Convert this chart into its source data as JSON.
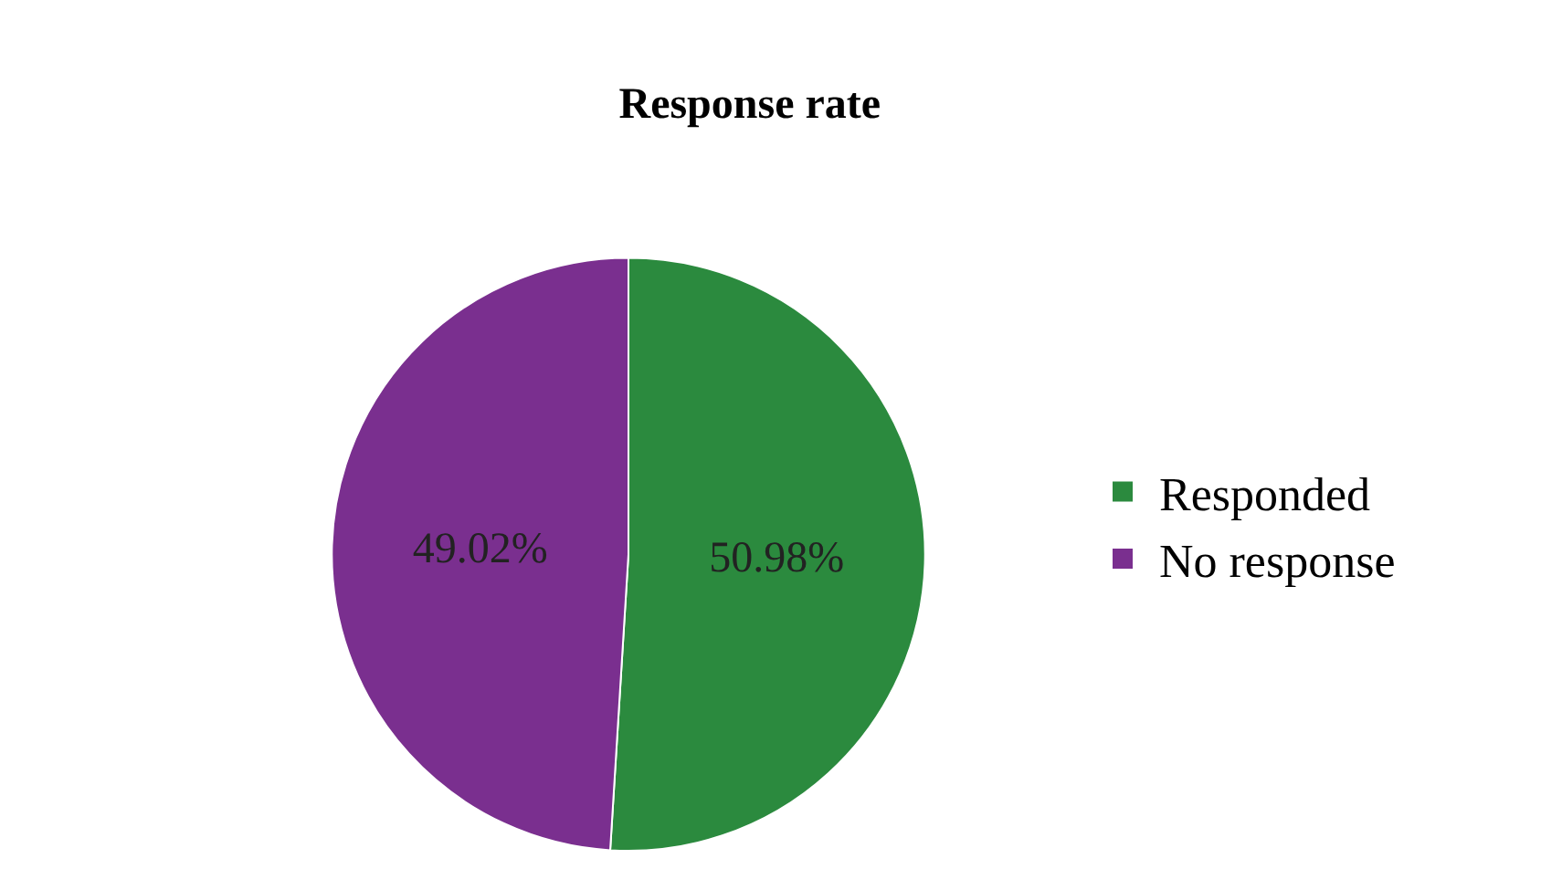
{
  "chart_data": {
    "type": "pie",
    "title": "Response rate",
    "categories": [
      "Responded",
      "No response"
    ],
    "values": [
      50.98,
      49.02
    ],
    "value_labels": [
      "50.98%",
      "49.02%"
    ],
    "colors": [
      "#2b8a3e",
      "#7a2f8f"
    ],
    "legend": "right"
  }
}
